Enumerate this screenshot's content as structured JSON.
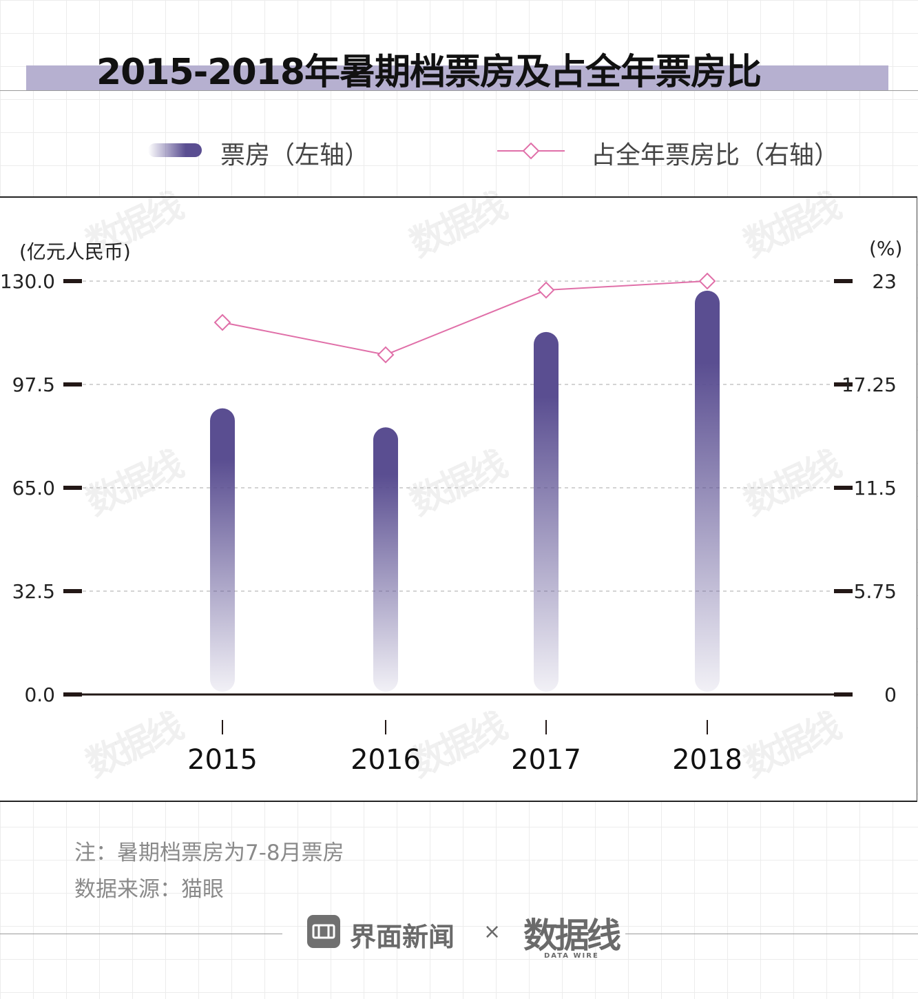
{
  "title": "2015-2018年暑期档票房及占全年票房比",
  "legend": {
    "bar_label": "票房（左轴）",
    "line_label": "占全年票房比（右轴）"
  },
  "left_axis_unit": "(亿元人民币)",
  "right_axis_unit": "(%)",
  "colors": {
    "bar": "#5a4e91",
    "line": "#e06fa8",
    "title_band": "#b6b0d0"
  },
  "chart_data": {
    "type": "bar",
    "categories": [
      "2015",
      "2016",
      "2017",
      "2018"
    ],
    "series": [
      {
        "name": "票房（左轴）",
        "type": "bar",
        "axis": "left",
        "values": [
          90.0,
          84.0,
          114.0,
          127.0
        ]
      },
      {
        "name": "占全年票房比（右轴）",
        "type": "line",
        "axis": "right",
        "values": [
          20.7,
          18.9,
          22.5,
          23.0
        ]
      }
    ],
    "left_ticks": [
      "0.0",
      "32.5",
      "65.0",
      "97.5",
      "130.0"
    ],
    "left_ylim": [
      0,
      130
    ],
    "right_ticks": [
      "0",
      "5.75",
      "11.5",
      "17.25",
      "23"
    ],
    "right_ylim": [
      0,
      23
    ],
    "grid": true
  },
  "notes": {
    "note": "注：暑期档票房为7-8月票房",
    "source": "数据来源：猫眼"
  },
  "footer": {
    "brand_name": "界面新闻",
    "separator": "×",
    "partner_mark": "数据线",
    "partner_sub": "DATA WIRE"
  },
  "watermark": {
    "text": "数据线",
    "sub": "DATA WIRE"
  }
}
